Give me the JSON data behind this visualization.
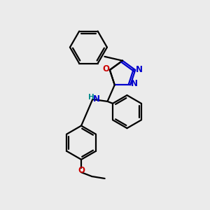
{
  "background_color": "#ebebeb",
  "bond_color": "#000000",
  "N_color": "#0000cc",
  "O_color": "#cc0000",
  "NH_color": "#008b8b",
  "line_width": 1.6,
  "fig_width": 3.0,
  "fig_height": 3.0,
  "dpi": 100,
  "xlim": [
    0,
    10
  ],
  "ylim": [
    0,
    10
  ]
}
